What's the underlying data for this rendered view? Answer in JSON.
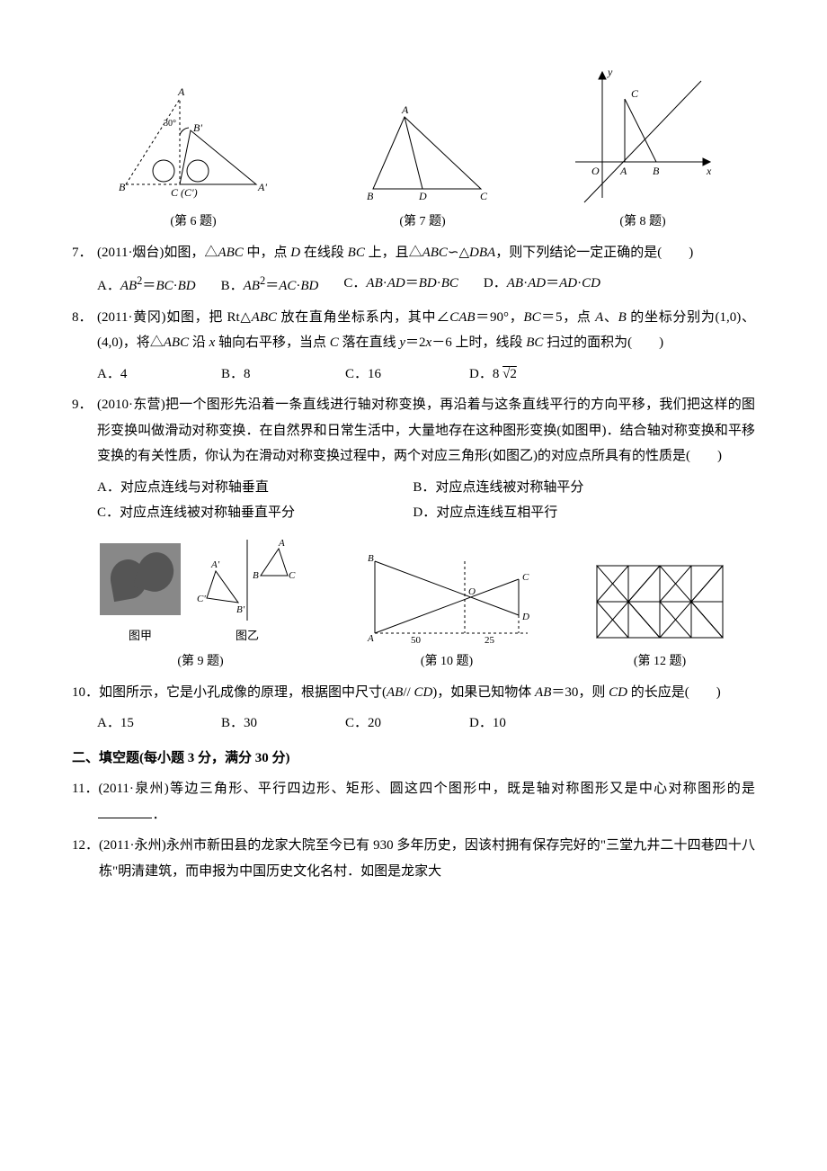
{
  "figures_top": {
    "captions": [
      "(第 6 题)",
      "(第 7 题)",
      "(第 8 题)"
    ],
    "fig6": {
      "labels": {
        "A": "A",
        "B": "B",
        "Bp": "B'",
        "C": "C (C')",
        "Ap": "A'",
        "angle": "30°"
      }
    },
    "fig7": {
      "labels": {
        "A": "A",
        "B": "B",
        "C": "C",
        "D": "D"
      }
    },
    "fig8": {
      "labels": {
        "y": "y",
        "x": "x",
        "O": "O",
        "A": "A",
        "B": "B",
        "C": "C"
      }
    }
  },
  "q7": {
    "num": "7．",
    "text_pre": "(2011·烟台)如图，△",
    "text_mid1": " 中，点 ",
    "text_mid2": " 在线段 ",
    "text_mid3": " 上，且△",
    "text_mid4": "∽△",
    "text_post": "，则下列结论一定正确的是(　　)",
    "abc": "ABC",
    "d": "D",
    "bc": "BC",
    "dba": "DBA",
    "opts": {
      "A": "A．",
      "A_expr_l": "AB",
      "A_sup": "2",
      "A_eq": "＝",
      "A_r1": "BC",
      "A_dot": "·",
      "A_r2": "BD",
      "B": "B．",
      "B_expr_l": "AB",
      "B_sup": "2",
      "B_eq": "＝",
      "B_r1": "AC",
      "B_dot": "·",
      "B_r2": "BD",
      "C": "C．",
      "C_l1": "AB",
      "C_d1": "·",
      "C_l2": "AD",
      "C_eq": "＝",
      "C_r1": "BD",
      "C_d2": "·",
      "C_r2": "BC",
      "D": "D．",
      "D_l1": "AB",
      "D_d1": "·",
      "D_l2": "AD",
      "D_eq": "＝",
      "D_r1": "AD",
      "D_d2": "·",
      "D_r2": "CD"
    }
  },
  "q8": {
    "num": "8．",
    "text": "(2011·黄冈)如图，把 Rt△<span class=\"italic\">ABC</span> 放在直角坐标系内，其中∠<span class=\"italic\">CAB</span>＝90°，<span class=\"italic\">BC</span>＝5，点 <span class=\"italic\">A</span>、<span class=\"italic\">B</span> 的坐标分别为(1,0)、(4,0)，将△<span class=\"italic\">ABC</span> 沿 <span class=\"italic\">x</span> 轴向右平移，当点 <span class=\"italic\">C</span> 落在直线 <span class=\"italic\">y</span>＝2<span class=\"italic\">x</span>－6 上时，线段 <span class=\"italic\">BC</span> 扫过的面积为(　　)",
    "opts": {
      "A": "A．4",
      "B": "B．8",
      "C": "C．16",
      "D_pre": "D．8 ",
      "D_rad": "√",
      "D_radv": "2"
    }
  },
  "q9": {
    "num": "9．",
    "text": "(2010·东营)把一个图形先沿着一条直线进行轴对称变换，再沿着与这条直线平行的方向平移，我们把这样的图形变换叫做滑动对称变换．在自然界和日常生活中，大量地存在这种图形变换(如图甲)．结合轴对称变换和平移变换的有关性质，你认为在滑动对称变换过程中，两个对应三角形(如图乙)的对应点所具有的性质是(　　)",
    "opts": {
      "A": "A．对应点连线与对称轴垂直",
      "B": "B．对应点连线被对称轴平分",
      "C": "C．对应点连线被对称轴垂直平分",
      "D": "D．对应点连线互相平行"
    }
  },
  "figures_mid": {
    "captions": [
      "(第 9 题)",
      "(第 10 题)",
      "(第 12 题)"
    ],
    "sub_jia": "图甲",
    "sub_yi": "图乙",
    "fig9b": {
      "A": "A",
      "B": "B",
      "C": "C",
      "Ap": "A'",
      "Bp": "B'",
      "Cp": "C'"
    },
    "fig10": {
      "A": "A",
      "B": "B",
      "C": "C",
      "D": "D",
      "O": "O",
      "50": "50",
      "25": "25"
    }
  },
  "q10": {
    "num": "10．",
    "text": "如图所示，它是小孔成像的原理，根据图中尺寸(<span class=\"italic\">AB</span>// <span class=\"italic\">CD</span>)，如果已知物体 <span class=\"italic\">AB</span>＝30，则 <span class=\"italic\">CD</span> 的长应是(　　)",
    "opts": {
      "A": "A．15",
      "B": "B．30",
      "C": "C．20",
      "D": "D．10"
    }
  },
  "section2": "二、填空题(每小题 3 分，满分 30 分)",
  "q11": {
    "num": "11．",
    "text": "(2011·泉州)等边三角形、平行四边形、矩形、圆这四个图形中，既是轴对称图形又是中心对称图形的是",
    "post": "．"
  },
  "q12": {
    "num": "12．",
    "text": "(2011·永州)永州市新田县的龙家大院至今已有 930 多年历史，因该村拥有保存完好的\"三堂九井二十四巷四十八栋\"明清建筑，而申报为中国历史文化名村．如图是龙家大"
  },
  "colors": {
    "text": "#000000",
    "bg": "#ffffff",
    "stroke": "#000000"
  }
}
